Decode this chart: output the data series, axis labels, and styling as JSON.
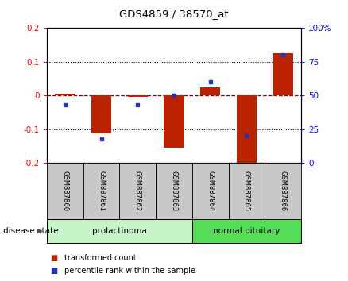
{
  "title": "GDS4859 / 38570_at",
  "samples": [
    "GSM887860",
    "GSM887861",
    "GSM887862",
    "GSM887863",
    "GSM887864",
    "GSM887865",
    "GSM887866"
  ],
  "red_values": [
    0.005,
    -0.113,
    -0.005,
    -0.155,
    0.025,
    -0.205,
    0.125
  ],
  "blue_values_pct": [
    43,
    18,
    43,
    50,
    60,
    20,
    80
  ],
  "ylim_left": [
    -0.2,
    0.2
  ],
  "ylim_right": [
    0,
    100
  ],
  "yticks_left": [
    -0.2,
    -0.1,
    0.0,
    0.1,
    0.2
  ],
  "yticks_right": [
    0,
    25,
    50,
    75,
    100
  ],
  "ytick_labels_left": [
    "-0.2",
    "-0.1",
    "0",
    "0.1",
    "0.2"
  ],
  "ytick_labels_right": [
    "0",
    "25",
    "50",
    "75",
    "100%"
  ],
  "hlines_dotted": [
    0.1,
    -0.1
  ],
  "hline_dashed": 0.0,
  "group1_indices": [
    0,
    1,
    2,
    3
  ],
  "group2_indices": [
    4,
    5,
    6
  ],
  "group1_label": "prolactinoma",
  "group2_label": "normal pituitary",
  "group1_color": "#c8f5c8",
  "group2_color": "#55dd55",
  "sample_box_color": "#c8c8c8",
  "bar_color": "#bb2200",
  "dot_color": "#2233bb",
  "legend_red_label": "transformed count",
  "legend_blue_label": "percentile rank within the sample",
  "disease_state_label": "disease state"
}
